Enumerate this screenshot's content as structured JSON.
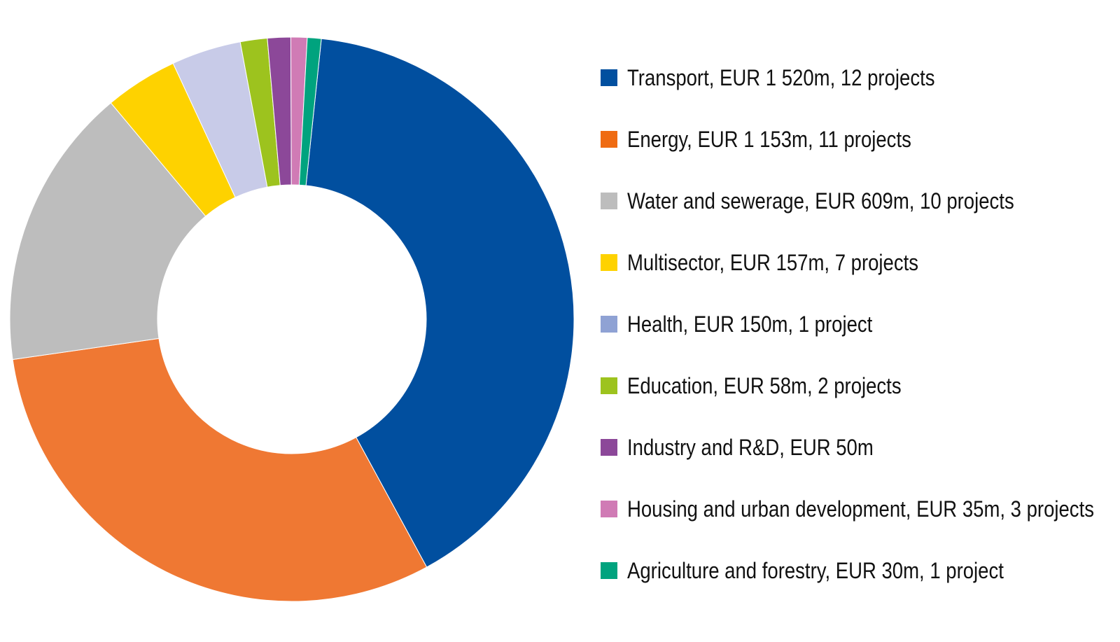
{
  "chart_data": {
    "type": "pie",
    "title": "",
    "legend_position": "right",
    "slices": [
      {
        "label": "Transport, EUR 1 520m, 12 projects",
        "value": 1520,
        "color": "#014f9f"
      },
      {
        "label": "Energy, EUR 1 153m, 11 projects",
        "value": 1153,
        "color": "#ef7833"
      },
      {
        "label": "Water and sewerage, EUR 609m, 10 projects",
        "value": 609,
        "color": "#bdbdbd"
      },
      {
        "label": "Multisector, EUR 157m, 7 projects",
        "value": 157,
        "color": "#fed200"
      },
      {
        "label": "Health, EUR 150m, 1 project",
        "value": 150,
        "color": "#c8cbe8"
      },
      {
        "label": "Education, EUR 58m, 2 projects",
        "value": 58,
        "color": "#9dc31e"
      },
      {
        "label": "Industry and R&D, EUR 50m",
        "value": 50,
        "color": "#8c4899"
      },
      {
        "label": "Housing and urban development, EUR 35m, 3 projects",
        "value": 35,
        "color": "#d07bb5"
      },
      {
        "label": "Agriculture and forestry, EUR 30m, 1 project",
        "value": 30,
        "color": "#00a37e"
      }
    ],
    "legend_colors": [
      "#014f9f",
      "#ef6b12",
      "#bdbdbd",
      "#fed200",
      "#8fa2d4",
      "#9dc31e",
      "#8c4899",
      "#d07bb5",
      "#00a37e"
    ]
  }
}
